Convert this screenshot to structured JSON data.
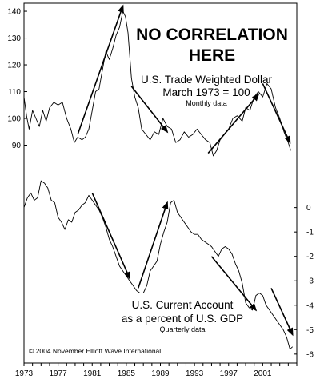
{
  "headline": [
    "NO CORRELATION",
    "HERE"
  ],
  "credit": "© 2004 November Elliott Wave International",
  "colors": {
    "line": "#000000",
    "arrow": "#000000",
    "background": "#ffffff"
  },
  "chart_data": [
    {
      "type": "line",
      "title": "U.S. Trade Weighted Dollar",
      "subtitle": "March 1973 = 100",
      "note": "Monthly data",
      "y_axis_side": "left",
      "yticks": [
        90,
        100,
        110,
        120,
        130,
        140
      ],
      "ylim": [
        80,
        143
      ],
      "xlim": [
        1973,
        2005
      ],
      "series": [
        {
          "x": [
            1973.0,
            1973.3,
            1973.6,
            1974.0,
            1974.4,
            1974.8,
            1975.2,
            1975.6,
            1976.0,
            1976.5,
            1977.0,
            1977.5,
            1978.0,
            1978.5,
            1978.9,
            1979.3,
            1979.8,
            1980.2,
            1980.6,
            1981.0,
            1981.4,
            1981.8,
            1982.2,
            1982.6,
            1983.0,
            1983.4,
            1983.8,
            1984.2,
            1984.6,
            1984.9,
            1985.2,
            1985.6,
            1986.0,
            1986.4,
            1986.8,
            1987.3,
            1987.8,
            1988.3,
            1988.8,
            1989.3,
            1989.8,
            1990.3,
            1990.8,
            1991.3,
            1991.8,
            1992.3,
            1992.8,
            1993.3,
            1993.8,
            1994.3,
            1994.8,
            1995.2,
            1995.6,
            1996.0,
            1996.5,
            1997.0,
            1997.5,
            1998.0,
            1998.6,
            1999.0,
            1999.5,
            2000.0,
            2000.5,
            2001.0,
            2001.5,
            2002.0,
            2002.5,
            2003.0,
            2003.5,
            2004.0,
            2004.3
          ],
          "y": [
            108,
            101,
            96,
            103,
            100,
            97,
            103,
            99,
            104,
            106,
            105,
            106,
            100,
            96,
            91,
            93,
            92,
            93,
            96,
            103,
            110,
            111,
            118,
            125,
            122,
            126,
            131,
            134,
            140,
            138,
            132,
            115,
            108,
            104,
            96,
            94,
            92,
            95,
            94,
            100,
            97,
            96,
            91,
            92,
            95,
            93,
            94,
            96,
            94,
            92,
            91,
            86,
            88,
            92,
            94,
            96,
            100,
            101,
            99,
            104,
            103,
            108,
            110,
            108,
            113,
            111,
            104,
            100,
            95,
            91,
            88
          ]
        }
      ]
    },
    {
      "type": "line",
      "title": "U.S. Current Account",
      "subtitle": "as a percent of U.S. GDP",
      "note": "Quarterly data",
      "y_axis_side": "right",
      "yticks": [
        0,
        -1,
        -2,
        -3,
        -4,
        -5,
        -6
      ],
      "ylim": [
        -6.3,
        1.2
      ],
      "xlim": [
        1973,
        2005
      ],
      "xticks": [
        1973,
        1977,
        1981,
        1985,
        1989,
        1993,
        1997,
        2001
      ],
      "series": [
        {
          "x": [
            1973.0,
            1973.4,
            1973.8,
            1974.2,
            1974.6,
            1975.0,
            1975.4,
            1975.8,
            1976.2,
            1976.6,
            1977.0,
            1977.4,
            1977.8,
            1978.2,
            1978.6,
            1979.0,
            1979.4,
            1979.8,
            1980.2,
            1980.6,
            1981.0,
            1981.4,
            1981.8,
            1982.2,
            1982.6,
            1983.0,
            1983.4,
            1983.8,
            1984.2,
            1984.6,
            1985.0,
            1985.4,
            1985.8,
            1986.2,
            1986.6,
            1987.0,
            1987.4,
            1987.8,
            1988.2,
            1988.6,
            1989.0,
            1989.4,
            1989.8,
            1990.2,
            1990.6,
            1991.0,
            1991.4,
            1991.8,
            1992.2,
            1992.6,
            1993.0,
            1993.4,
            1993.8,
            1994.2,
            1994.6,
            1995.0,
            1995.4,
            1995.8,
            1996.2,
            1996.6,
            1997.0,
            1997.4,
            1997.8,
            1998.2,
            1998.6,
            1999.0,
            1999.4,
            1999.8,
            2000.2,
            2000.6,
            2001.0,
            2001.4,
            2001.8,
            2002.2,
            2002.6,
            2003.0,
            2003.4,
            2003.8,
            2004.2,
            2004.5
          ],
          "y": [
            0.0,
            0.4,
            0.6,
            0.3,
            0.4,
            1.1,
            1.0,
            0.8,
            0.3,
            0.2,
            -0.4,
            -0.6,
            -0.9,
            -0.5,
            -0.6,
            -0.2,
            -0.1,
            0.1,
            0.2,
            0.5,
            0.3,
            0.1,
            -0.1,
            -0.4,
            -0.8,
            -1.3,
            -1.6,
            -2.0,
            -2.4,
            -2.6,
            -2.8,
            -3.0,
            -3.2,
            -3.4,
            -3.5,
            -3.5,
            -3.2,
            -2.6,
            -2.4,
            -2.2,
            -1.5,
            -1.0,
            -0.6,
            0.2,
            0.3,
            -0.2,
            -0.4,
            -0.6,
            -0.8,
            -1.0,
            -1.1,
            -1.1,
            -1.3,
            -1.4,
            -1.5,
            -1.6,
            -1.8,
            -2.0,
            -1.7,
            -1.6,
            -1.7,
            -1.9,
            -2.3,
            -2.6,
            -3.1,
            -3.9,
            -4.1,
            -4.2,
            -3.6,
            -3.5,
            -3.6,
            -4.0,
            -4.2,
            -4.4,
            -4.6,
            -4.8,
            -5.0,
            -5.3,
            -5.8,
            -5.7
          ]
        }
      ]
    }
  ]
}
